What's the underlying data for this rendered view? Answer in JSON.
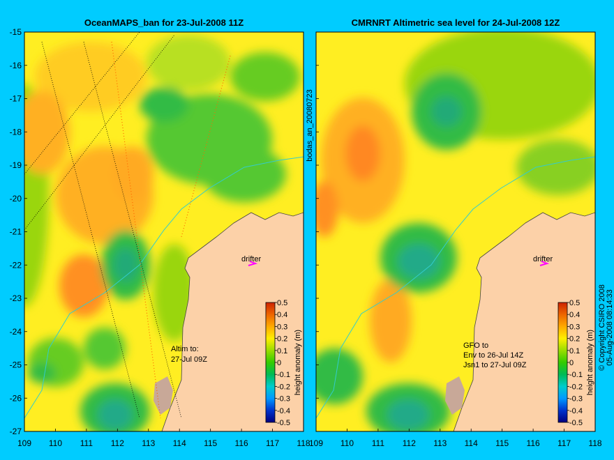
{
  "panels": [
    {
      "title": "OceanMAPS_ban for 23-Jul-2008 11Z",
      "drifter_label": "drifter",
      "note_lines": [
        "Altim to:",
        "27-Jul 09Z"
      ]
    },
    {
      "title": "CMRNRT Altimetric sea level  for 24-Jul-2008 12Z",
      "drifter_label": "drifter",
      "note_lines": [
        "GFO to",
        "Env to 26-Jul 14Z",
        "Jsn1 to 27-Jul 09Z"
      ]
    }
  ],
  "x_ticks": [
    "109",
    "110",
    "111",
    "112",
    "113",
    "114",
    "115",
    "116",
    "117",
    "118"
  ],
  "y_ticks": [
    "-15",
    "-16",
    "-17",
    "-18",
    "-19",
    "-20",
    "-21",
    "-22",
    "-23",
    "-24",
    "-25",
    "-26",
    "-27"
  ],
  "colorbar": {
    "label": "height anomaly (m)",
    "ticks": [
      "0.5",
      "0.4",
      "0.3",
      "0.2",
      "0.1",
      "0",
      "-0.1",
      "-0.2",
      "-0.3",
      "-0.4",
      "-0.5"
    ],
    "colors": [
      "#000080",
      "#0033cc",
      "#0099ff",
      "#00cccc",
      "#00bb55",
      "#33cc00",
      "#99dd00",
      "#ffee00",
      "#ffaa00",
      "#ee6600",
      "#cc2200"
    ]
  },
  "side_label": "bodas_an_20080723",
  "copyright": "© Copyright CSIRO 2008",
  "timestamp": "05-Aug-2008 08:14:33",
  "colors": {
    "background": "#00ccff",
    "land": "#fcd1a8",
    "sea_base": "#ffff33",
    "drifter": "#ff00ff"
  }
}
